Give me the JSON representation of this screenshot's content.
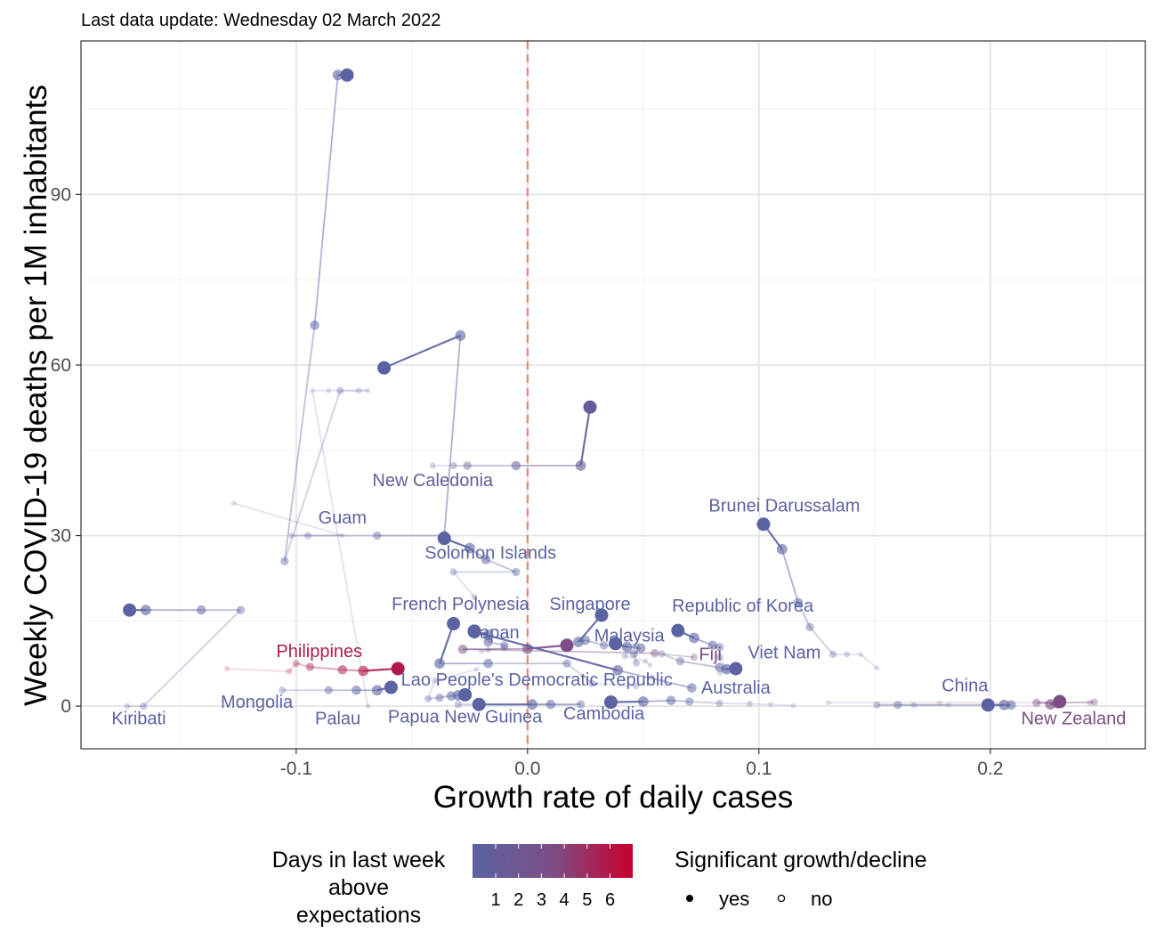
{
  "subtitle": "Last data update: Wednesday 02 March 2022",
  "chart_data": {
    "type": "scatter",
    "title": "",
    "subtitle": "Last data update: Wednesday 02 March 2022",
    "xlabel": "Growth rate of daily cases",
    "ylabel": "Weekly COVID-19 deaths per 1M inhabitants",
    "xlim": [
      -0.193,
      0.267
    ],
    "ylim": [
      -7.5,
      117
    ],
    "x_ticks": [
      -0.1,
      0.0,
      0.1,
      0.2
    ],
    "x_tick_labels": [
      "-0.1",
      "0.0",
      "0.1",
      "0.2"
    ],
    "y_ticks": [
      0,
      30,
      60,
      90
    ],
    "y_tick_labels": [
      "0",
      "30",
      "60",
      "90"
    ],
    "grid": true,
    "reference_line": {
      "x": 0,
      "style": "dashed",
      "color": "#f08070"
    },
    "colors": {
      "low": "#5b63a3",
      "mid": "#7d4e85",
      "high": "#c8002e",
      "ref": "#f08070"
    },
    "legend": {
      "placement": "bottom",
      "color_title": "Days in last week above expectations",
      "color_title_lines": [
        "Days in last week",
        "above",
        "expectations"
      ],
      "color_labels": [
        "1",
        "2",
        "3",
        "4",
        "5",
        "6"
      ],
      "shape_title": "Significant growth/decline",
      "shape_items": [
        "yes",
        "no"
      ]
    },
    "series": [
      {
        "name": "Kiribati",
        "days": 1,
        "points": [
          [
            -0.172,
            16.9
          ],
          [
            -0.165,
            16.9
          ],
          [
            -0.141,
            16.9
          ],
          [
            -0.124,
            16.9
          ],
          [
            -0.166,
            0
          ],
          [
            -0.173,
            0
          ]
        ]
      },
      {
        "name": "Mongolia",
        "days": 1,
        "points": [
          [
            -0.059,
            3.3
          ],
          [
            -0.065,
            2.8
          ],
          [
            -0.074,
            2.8
          ],
          [
            -0.086,
            2.8
          ],
          [
            -0.106,
            2.8
          ]
        ]
      },
      {
        "name": "Palau",
        "days": 1,
        "points": [
          [
            -0.078,
            111
          ],
          [
            -0.082,
            111
          ],
          [
            -0.092,
            67
          ],
          [
            -0.105,
            25.5
          ],
          [
            -0.081,
            55.5
          ],
          [
            -0.073,
            55.5
          ],
          [
            -0.069,
            55.5
          ],
          [
            -0.086,
            55.5
          ],
          [
            -0.093,
            55.5
          ],
          [
            -0.069,
            0
          ]
        ]
      },
      {
        "name": "Guam",
        "days": 1,
        "points": [
          [
            -0.062,
            59.5
          ],
          [
            -0.029,
            65.2
          ],
          [
            -0.036,
            30
          ],
          [
            -0.065,
            30
          ],
          [
            -0.095,
            30
          ],
          [
            -0.102,
            30
          ],
          [
            -0.08,
            30
          ],
          [
            -0.127,
            35.7
          ]
        ]
      },
      {
        "name": "New Caledonia",
        "days": 2,
        "points": [
          [
            0.027,
            52.6
          ],
          [
            0.023,
            42.3
          ],
          [
            -0.005,
            42.3
          ],
          [
            -0.026,
            42.3
          ],
          [
            -0.032,
            42.3
          ],
          [
            -0.041,
            42.3
          ]
        ]
      },
      {
        "name": "Solomon Islands",
        "days": 1,
        "points": [
          [
            -0.036,
            29.5
          ],
          [
            -0.025,
            27.8
          ],
          [
            -0.018,
            25.8
          ],
          [
            -0.005,
            23.6
          ],
          [
            -0.032,
            23.6
          ],
          [
            -0.023,
            19.2
          ]
        ]
      },
      {
        "name": "French Polynesia",
        "days": 1,
        "points": [
          [
            -0.032,
            14.5
          ],
          [
            -0.038,
            7.5
          ],
          [
            -0.017,
            7.5
          ],
          [
            0.017,
            7.5
          ],
          [
            0.028,
            4
          ],
          [
            0.047,
            3.5
          ]
        ]
      },
      {
        "name": "Japan",
        "days": 1,
        "points": [
          [
            -0.023,
            13.2
          ],
          [
            -0.017,
            12.5
          ],
          [
            -0.017,
            11.3
          ],
          [
            -0.01,
            10.7
          ],
          [
            -0.01,
            10.3
          ],
          [
            -0.017,
            9.9
          ],
          [
            -0.02,
            9.6
          ]
        ]
      },
      {
        "name": "Singapore",
        "days": 1,
        "points": [
          [
            0.032,
            16
          ],
          [
            0.022,
            11.3
          ],
          [
            0.025,
            11.6
          ],
          [
            0.033,
            10.7
          ],
          [
            0.047,
            10.5
          ],
          [
            0.042,
            8.8
          ],
          [
            0.051,
            7.9
          ],
          [
            0.053,
            7.2
          ]
        ]
      },
      {
        "name": "Malaysia",
        "days": 1,
        "points": [
          [
            0.038,
            11
          ],
          [
            0.043,
            10.4
          ],
          [
            0.049,
            10.2
          ],
          [
            0.046,
            9.2
          ],
          [
            0.047,
            7.6
          ]
        ]
      },
      {
        "name": "Fiji",
        "days": 4,
        "points": [
          [
            0.017,
            10.7
          ],
          [
            0.0,
            10.1
          ],
          [
            -0.028,
            10
          ],
          [
            0.055,
            9.3
          ],
          [
            0.072,
            8.6
          ]
        ]
      },
      {
        "name": "Republic of Korea",
        "days": 1,
        "points": [
          [
            0.065,
            13.3
          ],
          [
            0.072,
            12
          ],
          [
            0.08,
            10.7
          ],
          [
            0.083,
            10.4
          ],
          [
            0.083,
            8.6
          ],
          [
            0.086,
            6.5
          ],
          [
            0.083,
            5.8
          ]
        ]
      },
      {
        "name": "Brunei Darussalam",
        "days": 1,
        "points": [
          [
            0.102,
            32
          ],
          [
            0.11,
            27.6
          ],
          [
            0.117,
            18.2
          ],
          [
            0.122,
            13.9
          ],
          [
            0.132,
            9.1
          ],
          [
            0.138,
            9.1
          ],
          [
            0.144,
            9.1
          ],
          [
            0.151,
            6.7
          ]
        ]
      },
      {
        "name": "Viet Nam",
        "days": 1,
        "points": [
          [
            0.09,
            6.6
          ],
          [
            0.086,
            6.5
          ],
          [
            0.083,
            6.8
          ],
          [
            0.066,
            7.9
          ],
          [
            0.058,
            9.2
          ]
        ]
      },
      {
        "name": "Australia",
        "days": 1,
        "points": [
          [
            -0.023,
            13.1
          ],
          [
            0.039,
            6.3
          ],
          [
            0.071,
            3.2
          ]
        ]
      },
      {
        "name": "Lao People's Democratic Republic",
        "days": 1,
        "points": [
          [
            -0.027,
            2
          ],
          [
            -0.03,
            1.9
          ],
          [
            -0.033,
            1.8
          ],
          [
            -0.038,
            1.5
          ],
          [
            -0.043,
            1.3
          ],
          [
            -0.04,
            4.5
          ],
          [
            -0.022,
            6.5
          ]
        ]
      },
      {
        "name": "Philippines",
        "days": 6,
        "points": [
          [
            -0.056,
            6.6
          ],
          [
            -0.071,
            6.2
          ],
          [
            -0.08,
            6.4
          ],
          [
            -0.094,
            6.9
          ],
          [
            -0.1,
            7.5
          ],
          [
            -0.103,
            6.1
          ],
          [
            -0.13,
            6.6
          ]
        ]
      },
      {
        "name": "Papua New Guinea",
        "days": 1,
        "points": [
          [
            -0.021,
            0.3
          ],
          [
            0.002,
            0.3
          ],
          [
            0.01,
            0.3
          ],
          [
            0.023,
            0.3
          ],
          [
            -0.03,
            0.3
          ]
        ]
      },
      {
        "name": "Cambodia",
        "days": 1,
        "points": [
          [
            0.036,
            0.7
          ],
          [
            0.05,
            0.8
          ],
          [
            0.062,
            1
          ],
          [
            0.07,
            0.8
          ],
          [
            0.083,
            0.5
          ],
          [
            0.096,
            0.4
          ],
          [
            0.105,
            0.3
          ],
          [
            0.115,
            0.1
          ]
        ]
      },
      {
        "name": "China",
        "days": 1,
        "points": [
          [
            0.199,
            0.2
          ],
          [
            0.206,
            0.2
          ],
          [
            0.209,
            0.2
          ],
          [
            0.16,
            0.2
          ],
          [
            0.151,
            0.2
          ],
          [
            0.167,
            0.2
          ],
          [
            0.182,
            0.2
          ]
        ]
      },
      {
        "name": "New Zealand",
        "days": 4,
        "points": [
          [
            0.23,
            0.8
          ],
          [
            0.226,
            0.3
          ],
          [
            0.229,
            0.4
          ],
          [
            0.22,
            0.6
          ],
          [
            0.245,
            0.7
          ],
          [
            0.243,
            0.6
          ],
          [
            0.178,
            0.6
          ],
          [
            0.13,
            0.6
          ]
        ]
      }
    ],
    "labels": [
      {
        "text": "Kiribati",
        "x": -0.168,
        "y": -3.2,
        "days": 1
      },
      {
        "text": "Mongolia",
        "x": -0.117,
        "y": -0.3,
        "days": 1
      },
      {
        "text": "Palau",
        "x": -0.082,
        "y": -3.2,
        "days": 1
      },
      {
        "text": "Guam",
        "x": -0.08,
        "y": 32.1,
        "days": 1
      },
      {
        "text": "New Caledonia",
        "x": -0.041,
        "y": 38.7,
        "days": 2
      },
      {
        "text": "Solomon Islands",
        "x": -0.016,
        "y": 25.9,
        "days": 1
      },
      {
        "text": "French Polynesia",
        "x": -0.029,
        "y": 16.9,
        "days": 1
      },
      {
        "text": "Japan",
        "x": -0.014,
        "y": 11.9,
        "days": 1
      },
      {
        "text": "Singapore",
        "x": 0.027,
        "y": 16.9,
        "days": 1
      },
      {
        "text": "Malaysia",
        "x": 0.044,
        "y": 11.4,
        "days": 1
      },
      {
        "text": "Fiji",
        "x": 0.079,
        "y": 8.1,
        "days": 4
      },
      {
        "text": "Republic of Korea",
        "x": 0.093,
        "y": 16.6,
        "days": 1
      },
      {
        "text": "Brunei Darussalam",
        "x": 0.111,
        "y": 34.2,
        "days": 1
      },
      {
        "text": "Viet Nam",
        "x": 0.111,
        "y": 8.4,
        "days": 1
      },
      {
        "text": "Australia",
        "x": 0.09,
        "y": 2.2,
        "days": 1
      },
      {
        "text": "Lao People's Democratic Republic",
        "x": 0.004,
        "y": 3.6,
        "days": 1
      },
      {
        "text": "Philippines",
        "x": -0.09,
        "y": 8.6,
        "days": 6
      },
      {
        "text": "Papua New Guinea",
        "x": -0.027,
        "y": -2.9,
        "days": 1
      },
      {
        "text": "Cambodia",
        "x": 0.033,
        "y": -2.3,
        "days": 1
      },
      {
        "text": "China",
        "x": 0.189,
        "y": 2.6,
        "days": 1
      },
      {
        "text": "New Zealand",
        "x": 0.236,
        "y": -3.2,
        "days": 4
      }
    ]
  }
}
